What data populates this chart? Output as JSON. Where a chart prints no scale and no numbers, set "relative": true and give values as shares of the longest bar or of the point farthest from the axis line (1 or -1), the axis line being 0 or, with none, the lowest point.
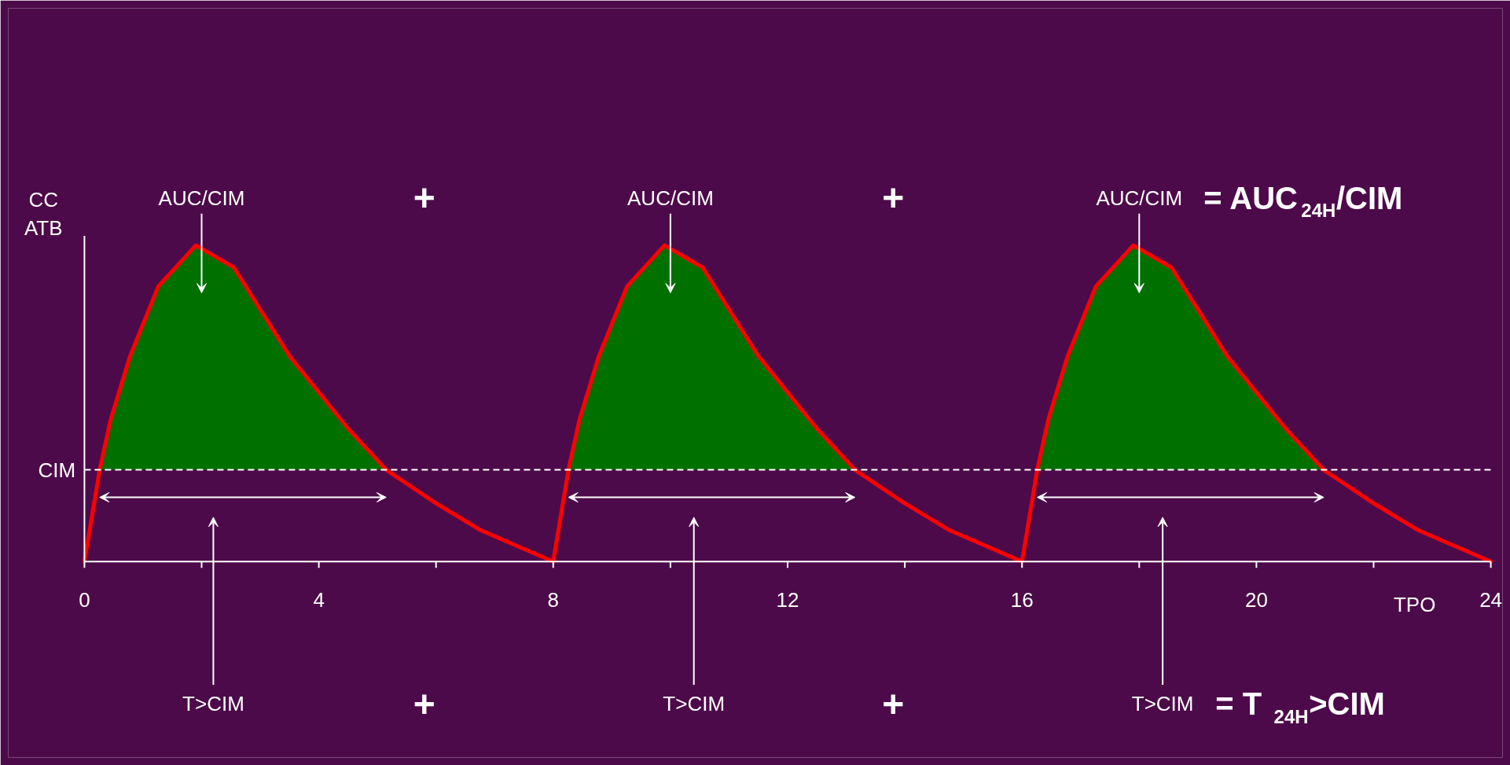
{
  "chart_data": {
    "type": "line",
    "relative": true,
    "ylabel": "CC\nATB",
    "xlabel": "TPO",
    "xlim": [
      0,
      24
    ],
    "xticks": [
      0,
      {
        "value": 2,
        "label": null
      },
      4,
      {
        "value": 6,
        "label": null
      },
      8,
      {
        "value": 10,
        "label": null
      },
      12,
      {
        "value": 14,
        "label": null
      },
      16,
      {
        "value": 18,
        "label": null
      },
      20,
      {
        "value": 22,
        "label": null
      },
      24
    ],
    "series": [
      {
        "type": "area",
        "color": "#007000",
        "x": [
          0.26,
          0.45,
          0.78,
          1.26,
          1.9,
          2.55,
          3.5,
          4.5,
          5.15,
          6,
          8.26,
          8.45,
          8.78,
          9.26,
          9.9,
          10.55,
          11.5,
          12.5,
          13.15,
          14,
          16.26,
          16.45,
          16.78,
          17.26,
          17.9,
          18.55,
          19.5,
          20.5,
          21.15
        ],
        "values": [
          0.29,
          0.45,
          0.65,
          0.87,
          1.0,
          0.93,
          0.65,
          0.42,
          0.29,
          null,
          0.29,
          0.45,
          0.65,
          0.87,
          1.0,
          0.93,
          0.65,
          0.42,
          0.29,
          null,
          0.29,
          0.45,
          0.65,
          0.87,
          1.0,
          0.93,
          0.65,
          0.42,
          0.29
        ]
      },
      {
        "color": "#ff0000",
        "x": [
          0,
          0.26,
          0.45,
          0.78,
          1.26,
          1.9,
          2.55,
          3.5,
          4.5,
          5.15,
          5.95,
          6.75,
          8,
          8.26,
          8.45,
          8.78,
          9.26,
          9.9,
          10.55,
          11.5,
          12.5,
          13.15,
          13.95,
          14.75,
          16,
          16.26,
          16.45,
          16.78,
          17.26,
          17.9,
          18.55,
          19.5,
          20.5,
          21.15,
          21.95,
          22.75,
          24
        ],
        "values": [
          0,
          0.29,
          0.45,
          0.65,
          0.87,
          1.0,
          0.93,
          0.65,
          0.42,
          0.29,
          0.19,
          0.1,
          0,
          0.29,
          0.45,
          0.65,
          0.87,
          1.0,
          0.93,
          0.65,
          0.42,
          0.29,
          0.19,
          0.1,
          0,
          0.29,
          0.45,
          0.65,
          0.87,
          1.0,
          0.93,
          0.65,
          0.42,
          0.29,
          0.19,
          0.1,
          0
        ]
      }
    ],
    "ref_lines": [
      {
        "axis": "y",
        "value": 0.29,
        "label": "CIM",
        "color": "#ffffff",
        "line_style": "dashed"
      }
    ],
    "annotations": [
      "AUC/CIM",
      "AUC/CIM",
      "AUC/CIM",
      "T>CIM",
      "T>CIM",
      "T>CIM",
      "+",
      "+",
      "= AUC$_{24H}$/CIM",
      "+",
      "+",
      "= T$_{24H}$>CIM"
    ],
    "grid": false
  }
}
